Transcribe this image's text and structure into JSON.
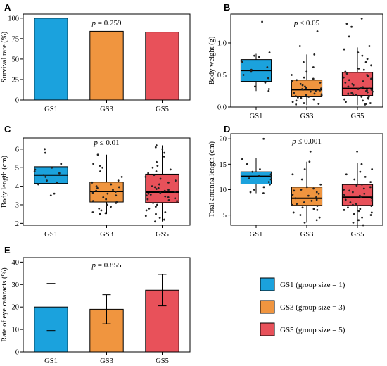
{
  "colors": {
    "GS1": "#1ba2dd",
    "GS3": "#f0953f",
    "GS5": "#e8515a"
  },
  "legend": [
    {
      "key": "GS1",
      "label": "GS1 (group size = 1)"
    },
    {
      "key": "GS3",
      "label": "GS3 (group size = 3)"
    },
    {
      "key": "GS5",
      "label": "GS5 (group size = 5)"
    }
  ],
  "chart_data": [
    {
      "id": "A",
      "letter": "A",
      "type": "bar",
      "categories": [
        "GS1",
        "GS3",
        "GS5"
      ],
      "values": [
        100,
        84,
        83
      ],
      "ylabel": "Survival rate (%)",
      "ylim": [
        0,
        105
      ],
      "yticks": [
        0,
        25,
        50,
        75,
        100
      ],
      "annotation": {
        "prefix": "p",
        "text": " = 0.259"
      }
    },
    {
      "id": "B",
      "letter": "B",
      "type": "box",
      "categories": [
        "GS1",
        "GS3",
        "GS5"
      ],
      "ylabel": "Body weight (g)",
      "ylim": [
        0,
        1.45
      ],
      "yticks": [
        0.0,
        0.5,
        1.0
      ],
      "annotation": {
        "prefix": "p",
        "text": " ≤ 0.05"
      },
      "boxes": [
        {
          "q1": 0.4,
          "median": 0.57,
          "q3": 0.74,
          "wlow": 0.25,
          "whigh": 0.83
        },
        {
          "q1": 0.16,
          "median": 0.27,
          "q3": 0.42,
          "wlow": 0.03,
          "whigh": 0.82
        },
        {
          "q1": 0.18,
          "median": 0.29,
          "q3": 0.54,
          "wlow": 0.03,
          "whigh": 0.93
        }
      ],
      "points": [
        [
          1.33,
          0.85,
          0.8,
          0.78,
          0.72,
          0.7,
          0.62,
          0.58,
          0.55,
          0.5,
          0.45,
          0.38,
          0.32,
          0.28,
          0.25
        ],
        [
          1.18,
          0.95,
          0.82,
          0.7,
          0.62,
          0.55,
          0.5,
          0.46,
          0.44,
          0.42,
          0.4,
          0.38,
          0.36,
          0.34,
          0.32,
          0.3,
          0.29,
          0.28,
          0.27,
          0.26,
          0.25,
          0.24,
          0.22,
          0.21,
          0.2,
          0.19,
          0.18,
          0.17,
          0.16,
          0.15,
          0.14,
          0.12,
          0.1,
          0.08,
          0.06,
          0.05,
          0.04
        ],
        [
          1.38,
          1.3,
          1.25,
          1.1,
          0.95,
          0.9,
          0.85,
          0.8,
          0.75,
          0.7,
          0.65,
          0.6,
          0.58,
          0.55,
          0.52,
          0.5,
          0.48,
          0.46,
          0.44,
          0.42,
          0.4,
          0.38,
          0.36,
          0.34,
          0.32,
          0.31,
          0.3,
          0.29,
          0.28,
          0.27,
          0.26,
          0.25,
          0.24,
          0.23,
          0.22,
          0.21,
          0.2,
          0.19,
          0.18,
          0.17,
          0.16,
          0.15,
          0.14,
          0.13,
          0.12,
          0.1,
          0.08,
          0.06,
          0.05,
          0.04
        ]
      ]
    },
    {
      "id": "C",
      "letter": "C",
      "type": "box",
      "categories": [
        "GS1",
        "GS3",
        "GS5"
      ],
      "ylabel": "Body length (cm)",
      "ylim": [
        1.9,
        6.6
      ],
      "yticks": [
        2,
        3,
        4,
        5,
        6
      ],
      "annotation": {
        "prefix": "p",
        "text": " ≤ 0.01"
      },
      "boxes": [
        {
          "q1": 4.15,
          "median": 4.6,
          "q3": 5.05,
          "wlow": 3.45,
          "whigh": 6.0
        },
        {
          "q1": 3.15,
          "median": 3.72,
          "q3": 4.22,
          "wlow": 2.5,
          "whigh": 5.7
        },
        {
          "q1": 3.12,
          "median": 3.68,
          "q3": 4.65,
          "wlow": 2.1,
          "whigh": 6.2
        }
      ],
      "points": [
        [
          6.0,
          5.8,
          5.2,
          5.0,
          4.9,
          4.8,
          4.7,
          4.6,
          4.5,
          4.3,
          4.2,
          4.1,
          3.6,
          3.5
        ],
        [
          5.7,
          5.2,
          5.1,
          5.0,
          4.8,
          4.5,
          4.2,
          4.1,
          4.0,
          3.9,
          3.8,
          3.75,
          3.7,
          3.65,
          3.6,
          3.5,
          3.4,
          3.3,
          3.2,
          3.15,
          3.1,
          3.0,
          2.9,
          2.8,
          2.7,
          2.6,
          2.55,
          2.5,
          4.3,
          3.95
        ],
        [
          6.2,
          6.1,
          6.0,
          5.8,
          5.6,
          5.3,
          5.1,
          4.9,
          4.7,
          4.6,
          4.5,
          4.4,
          4.3,
          4.2,
          4.1,
          4.0,
          3.9,
          3.85,
          3.8,
          3.75,
          3.7,
          3.65,
          3.6,
          3.55,
          3.5,
          3.45,
          3.4,
          3.35,
          3.3,
          3.2,
          3.1,
          3.0,
          2.9,
          2.8,
          2.7,
          2.6,
          2.5,
          2.4,
          2.3,
          2.2,
          2.1,
          4.8,
          5.0,
          3.95,
          3.25
        ]
      ]
    },
    {
      "id": "D",
      "letter": "D",
      "type": "box",
      "categories": [
        "GS1",
        "GS3",
        "GS5"
      ],
      "ylabel": "Total antenna length (cm)",
      "ylim": [
        3,
        21
      ],
      "yticks": [
        5,
        10,
        15,
        20
      ],
      "annotation": {
        "prefix": "p",
        "text": " ≤ 0.001"
      },
      "boxes": [
        {
          "q1": 11.1,
          "median": 12.6,
          "q3": 13.5,
          "wlow": 9.3,
          "whigh": 16.2
        },
        {
          "q1": 6.9,
          "median": 8.3,
          "q3": 10.5,
          "wlow": 3.5,
          "whigh": 15.5
        },
        {
          "q1": 6.9,
          "median": 8.5,
          "q3": 11.0,
          "wlow": 3.0,
          "whigh": 15.2
        }
      ],
      "points": [
        [
          20.0,
          16.0,
          15.0,
          14.0,
          13.5,
          13.0,
          12.8,
          12.5,
          12.2,
          12.0,
          11.5,
          11.0,
          10.5,
          10.0,
          9.5,
          9.3
        ],
        [
          17.5,
          15.5,
          14.0,
          13.0,
          12.0,
          11.0,
          10.5,
          10.2,
          10.0,
          9.8,
          9.5,
          9.2,
          9.0,
          8.8,
          8.5,
          8.3,
          8.0,
          7.8,
          7.5,
          7.2,
          7.0,
          6.8,
          6.5,
          6.2,
          6.0,
          5.5,
          5.0,
          4.5,
          4.0,
          3.5
        ],
        [
          17.5,
          15.0,
          14.0,
          13.5,
          13.0,
          12.5,
          12.0,
          11.5,
          11.0,
          10.8,
          10.5,
          10.2,
          10.0,
          9.8,
          9.5,
          9.2,
          9.0,
          8.8,
          8.5,
          8.3,
          8.0,
          7.8,
          7.5,
          7.2,
          7.0,
          6.8,
          6.5,
          6.2,
          6.0,
          5.8,
          5.5,
          5.2,
          5.0,
          4.5,
          4.0,
          3.5,
          3.0
        ]
      ]
    },
    {
      "id": "E",
      "letter": "E",
      "type": "bar",
      "categories": [
        "GS1",
        "GS3",
        "GS5"
      ],
      "values": [
        20,
        19,
        27.5
      ],
      "errors": [
        [
          9.5,
          30.5
        ],
        [
          12.5,
          25.5
        ],
        [
          20.5,
          34.5
        ]
      ],
      "ylabel": "Rate of eye cataracts (%)",
      "ylim": [
        0,
        42
      ],
      "yticks": [
        0,
        10,
        20,
        30,
        40
      ],
      "annotation": {
        "prefix": "p",
        "text": " = 0.855"
      }
    }
  ]
}
